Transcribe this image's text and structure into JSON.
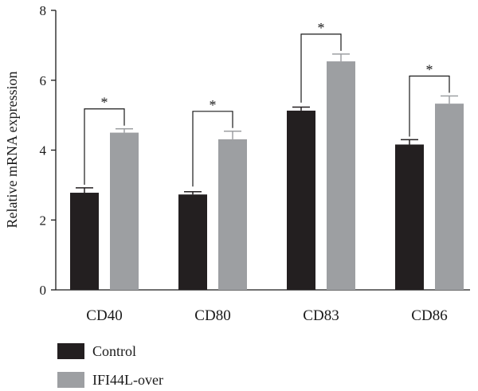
{
  "chart_data": {
    "type": "bar",
    "title": "",
    "xlabel": "",
    "ylabel": "Relative mRNA expression",
    "ylim": [
      0,
      8
    ],
    "yticks": [
      "0",
      "2",
      "4",
      "6",
      "8"
    ],
    "categories": [
      "CD40",
      "CD80",
      "CD83",
      "CD86"
    ],
    "series": [
      {
        "name": "Control",
        "color": "#231f20",
        "values": [
          2.78,
          2.73,
          5.13,
          4.16
        ],
        "errors": [
          0.14,
          0.08,
          0.1,
          0.14
        ]
      },
      {
        "name": "IFI44L-over",
        "color": "#9d9fa2",
        "values": [
          4.5,
          4.31,
          6.54,
          5.33
        ],
        "errors": [
          0.11,
          0.23,
          0.21,
          0.22
        ]
      }
    ],
    "significance": [
      "*",
      "*",
      "*",
      "*"
    ],
    "legend_position": "bottom-left",
    "grid": false
  }
}
